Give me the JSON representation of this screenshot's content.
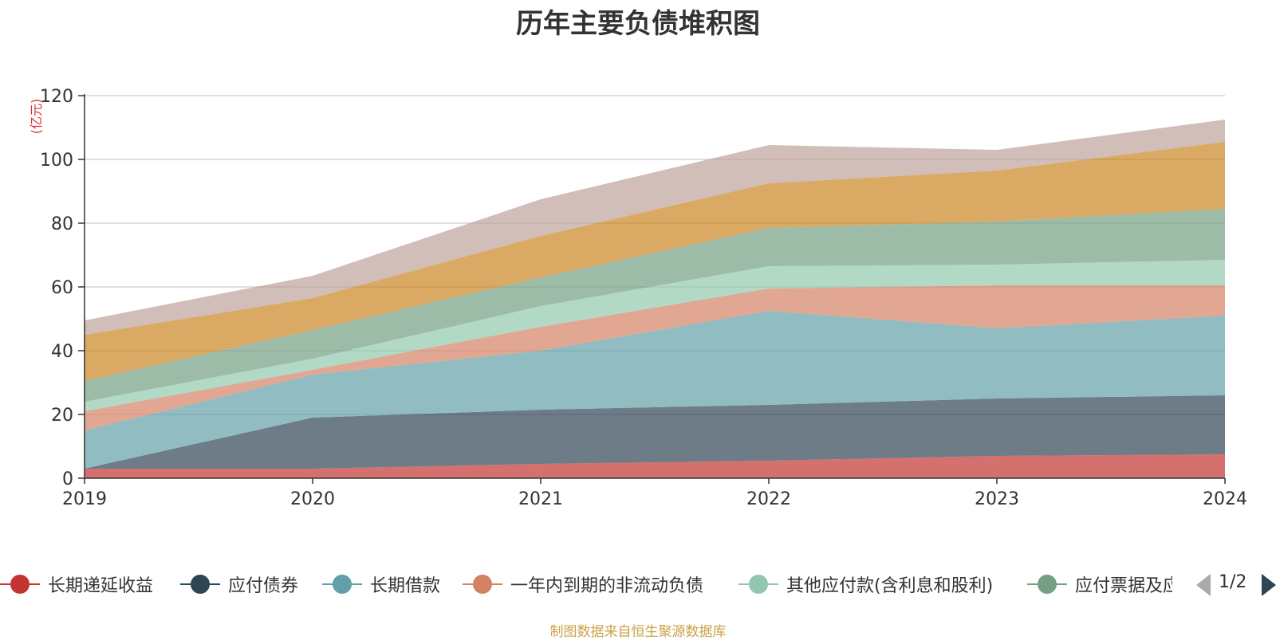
{
  "chart_data": {
    "type": "area",
    "stacked": true,
    "title": "历年主要负债堆积图",
    "ylabel": "(亿元)",
    "xlabel": "",
    "x": [
      "2019",
      "2020",
      "2021",
      "2022",
      "2023",
      "2024"
    ],
    "ylim": [
      0,
      120
    ],
    "yticks": [
      0,
      20,
      40,
      60,
      80,
      100,
      120
    ],
    "grid": true,
    "legend_position": "bottom",
    "series": [
      {
        "name": "长期递延收益",
        "color": "#c23531",
        "values": [
          3,
          3,
          4.5,
          5.5,
          7,
          7.5
        ]
      },
      {
        "name": "应付债券",
        "color": "#2f4554",
        "values": [
          0,
          16,
          17,
          17.5,
          18,
          18.5
        ]
      },
      {
        "name": "长期借款",
        "color": "#61a0a8",
        "values": [
          12,
          13.5,
          18.5,
          29.5,
          22,
          25
        ]
      },
      {
        "name": "一年内到期的非流动负债",
        "color": "#d48265",
        "values": [
          6,
          1.5,
          7.5,
          7,
          13.5,
          9.5
        ]
      },
      {
        "name": "其他应付款(含利息和股利)",
        "color": "#91c7ae",
        "values": [
          3,
          3.5,
          6.5,
          7,
          6.5,
          8
        ]
      },
      {
        "name": "应付票据及应付账款",
        "color": "#749f83",
        "values": [
          6.5,
          9,
          9,
          12,
          13.5,
          16
        ]
      },
      {
        "name": "",
        "color": "#ca8622",
        "values": [
          14.5,
          10,
          13,
          14,
          16,
          21
        ]
      },
      {
        "name": "",
        "color": "#bda29a",
        "values": [
          4.5,
          7,
          11.5,
          12,
          6.5,
          7
        ]
      }
    ]
  },
  "legend": {
    "items": [
      {
        "label": "长期递延收益",
        "color": "#c23531"
      },
      {
        "label": "应付债券",
        "color": "#2f4554"
      },
      {
        "label": "长期借款",
        "color": "#61a0a8"
      },
      {
        "label": "一年内到期的非流动负债",
        "color": "#d48265"
      },
      {
        "label": "其他应付款(含利息和股利)",
        "color": "#91c7ae"
      },
      {
        "label": "应付票据及应付账款",
        "color": "#749f83"
      }
    ],
    "page_indicator": "1/2"
  },
  "footer": {
    "source": "制图数据来自恒生聚源数据库"
  }
}
